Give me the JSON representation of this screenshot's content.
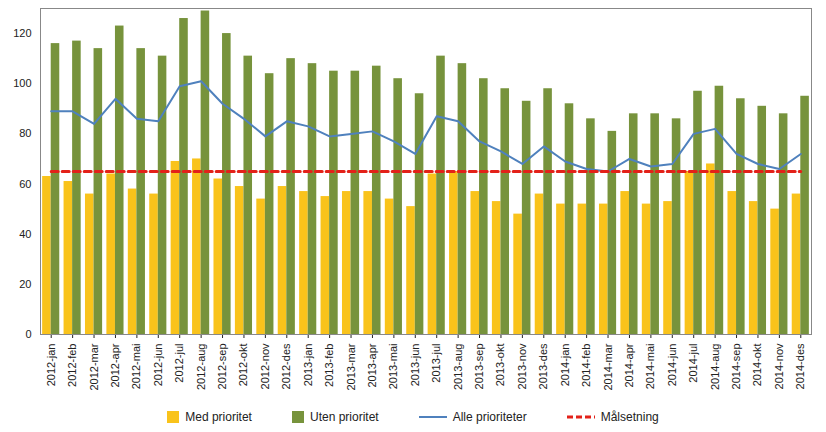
{
  "chart_data": {
    "type": "bar",
    "categories": [
      "2012-jan",
      "2012-feb",
      "2012-mar",
      "2012-apr",
      "2012-mai",
      "2012-jun",
      "2012-jul",
      "2012-aug",
      "2012-sep",
      "2012-okt",
      "2012-nov",
      "2012-des",
      "2013-jan",
      "2013-feb",
      "2013-mar",
      "2013-apr",
      "2013-mai",
      "2013-jun",
      "2013-jul",
      "2013-aug",
      "2013-sep",
      "2013-okt",
      "2013-nov",
      "2013-des",
      "2014-jan",
      "2014-feb",
      "2014-mar",
      "2014-apr",
      "2014-mai",
      "2014-jun",
      "2014-jul",
      "2014-aug",
      "2014-sep",
      "2014-okt",
      "2014-nov",
      "2014-des"
    ],
    "series": [
      {
        "name": "Med prioritet",
        "type": "bar",
        "color": "#f9c31b",
        "values": [
          63,
          61,
          56,
          64,
          58,
          56,
          69,
          70,
          62,
          59,
          54,
          59,
          57,
          55,
          57,
          57,
          54,
          51,
          64,
          65,
          57,
          53,
          48,
          56,
          52,
          52,
          52,
          57,
          52,
          53,
          65,
          68,
          57,
          53,
          50,
          56
        ]
      },
      {
        "name": "Uten prioritet",
        "type": "bar",
        "color": "#77933c",
        "values": [
          116,
          117,
          114,
          123,
          114,
          111,
          126,
          129,
          120,
          111,
          104,
          110,
          108,
          105,
          105,
          107,
          102,
          96,
          111,
          108,
          102,
          98,
          93,
          98,
          92,
          86,
          81,
          88,
          88,
          86,
          97,
          99,
          94,
          91,
          88,
          95
        ]
      },
      {
        "name": "Alle prioriteter",
        "type": "line",
        "color": "#4f81bd",
        "line_style": "solid",
        "values": [
          89,
          89,
          84,
          94,
          86,
          85,
          99,
          101,
          92,
          86,
          79,
          85,
          83,
          79,
          80,
          81,
          77,
          72,
          87,
          85,
          77,
          73,
          68,
          75,
          69,
          66,
          65,
          70,
          67,
          68,
          80,
          82,
          72,
          68,
          66,
          72
        ]
      },
      {
        "name": "Målsetning",
        "type": "line",
        "color": "#e32119",
        "line_style": "dashed",
        "values": [
          65,
          65,
          65,
          65,
          65,
          65,
          65,
          65,
          65,
          65,
          65,
          65,
          65,
          65,
          65,
          65,
          65,
          65,
          65,
          65,
          65,
          65,
          65,
          65,
          65,
          65,
          65,
          65,
          65,
          65,
          65,
          65,
          65,
          65,
          65,
          65
        ]
      }
    ],
    "ylim": [
      0,
      130
    ],
    "yticks": [
      0,
      20,
      40,
      60,
      80,
      100,
      120
    ],
    "grid": false,
    "legend": "bottom"
  }
}
